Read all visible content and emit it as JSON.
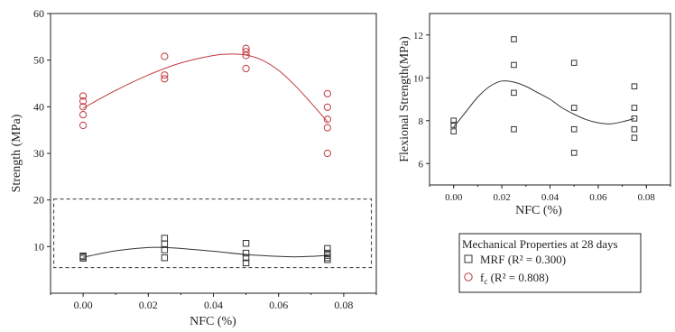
{
  "colors": {
    "mrf": "#333333",
    "fc": "#c0393e",
    "dashed_box": "#333333",
    "axis": "#222222"
  },
  "legend": {
    "title": "Mechanical Properties at 28 days",
    "mrf_label": "MRF (R² = 0.300)",
    "fc_label_main": "f",
    "fc_label_sub": "c",
    "fc_label_rest": " (R² = 0.808)",
    "mrf_marker": "square",
    "fc_marker": "circle"
  },
  "chart_data": [
    {
      "type": "scatter",
      "ylabel": "Strength (MPa)",
      "xlabel": "NFC (%)",
      "xlim": [
        -0.01,
        0.09
      ],
      "ylim": [
        0,
        60
      ],
      "xticks": [
        0.0,
        0.02,
        0.04,
        0.06,
        0.08
      ],
      "xtick_labels": [
        "0.00",
        "0.02",
        "0.04",
        "0.06",
        "0.08"
      ],
      "yticks": [
        10,
        20,
        30,
        40,
        50,
        60
      ],
      "ytick_labels": [
        "10",
        "20",
        "30",
        "40",
        "50",
        "60"
      ],
      "dashed_box": {
        "x": [
          -0.009,
          0.0885
        ],
        "y": [
          5.5,
          20.2
        ]
      },
      "series": [
        {
          "name": "f_c (R² = 0.808)",
          "marker": "circle",
          "points": [
            [
              0.0,
              36.0
            ],
            [
              0.0,
              38.3
            ],
            [
              0.0,
              40.0
            ],
            [
              0.0,
              41.2
            ],
            [
              0.0,
              42.3
            ],
            [
              0.025,
              46.0
            ],
            [
              0.025,
              46.8
            ],
            [
              0.025,
              50.8
            ],
            [
              0.05,
              48.2
            ],
            [
              0.05,
              51.0
            ],
            [
              0.05,
              51.8
            ],
            [
              0.05,
              52.5
            ],
            [
              0.075,
              30.0
            ],
            [
              0.075,
              35.5
            ],
            [
              0.075,
              37.3
            ],
            [
              0.075,
              39.9
            ],
            [
              0.075,
              42.8
            ]
          ],
          "fit": [
            [
              0.0,
              39.7
            ],
            [
              0.01,
              43.5
            ],
            [
              0.02,
              46.8
            ],
            [
              0.03,
              49.4
            ],
            [
              0.04,
              51.0
            ],
            [
              0.045,
              51.3
            ],
            [
              0.05,
              51.1
            ],
            [
              0.055,
              50.0
            ],
            [
              0.06,
              47.8
            ],
            [
              0.065,
              44.6
            ],
            [
              0.07,
              40.8
            ],
            [
              0.075,
              36.8
            ]
          ]
        },
        {
          "name": "MRF (R² = 0.300)",
          "marker": "square",
          "points": [
            [
              0.0,
              7.5
            ],
            [
              0.0,
              7.8
            ],
            [
              0.0,
              8.0
            ],
            [
              0.025,
              7.6
            ],
            [
              0.025,
              9.3
            ],
            [
              0.025,
              10.6
            ],
            [
              0.025,
              11.8
            ],
            [
              0.05,
              6.5
            ],
            [
              0.05,
              7.6
            ],
            [
              0.05,
              8.6
            ],
            [
              0.05,
              10.7
            ],
            [
              0.075,
              7.2
            ],
            [
              0.075,
              7.6
            ],
            [
              0.075,
              8.1
            ],
            [
              0.075,
              8.6
            ],
            [
              0.075,
              9.6
            ]
          ],
          "fit": [
            [
              0.0,
              7.7
            ],
            [
              0.01,
              9.1
            ],
            [
              0.02,
              9.8
            ],
            [
              0.025,
              9.8
            ],
            [
              0.03,
              9.6
            ],
            [
              0.04,
              9.0
            ],
            [
              0.05,
              8.3
            ],
            [
              0.06,
              7.9
            ],
            [
              0.065,
              7.8
            ],
            [
              0.07,
              7.9
            ],
            [
              0.075,
              8.1
            ]
          ]
        }
      ]
    },
    {
      "type": "scatter",
      "ylabel": "Flexional Strength(MPa)",
      "xlabel": "NFC (%)",
      "xlim": [
        -0.01,
        0.09
      ],
      "ylim": [
        5,
        13
      ],
      "xticks": [
        0.0,
        0.02,
        0.04,
        0.06,
        0.08
      ],
      "xtick_labels": [
        "0.00",
        "0.02",
        "0.04",
        "0.06",
        "0.08"
      ],
      "yticks": [
        6,
        8,
        10,
        12
      ],
      "ytick_labels": [
        "6",
        "8",
        "10",
        "12"
      ],
      "series": [
        {
          "name": "MRF (R² = 0.300)",
          "marker": "square",
          "points": [
            [
              0.0,
              7.5
            ],
            [
              0.0,
              7.8
            ],
            [
              0.0,
              8.0
            ],
            [
              0.025,
              7.6
            ],
            [
              0.025,
              9.3
            ],
            [
              0.025,
              10.6
            ],
            [
              0.025,
              11.8
            ],
            [
              0.05,
              6.5
            ],
            [
              0.05,
              7.6
            ],
            [
              0.05,
              8.6
            ],
            [
              0.05,
              10.7
            ],
            [
              0.075,
              7.2
            ],
            [
              0.075,
              7.6
            ],
            [
              0.075,
              8.1
            ],
            [
              0.075,
              8.6
            ],
            [
              0.075,
              9.6
            ]
          ],
          "fit": [
            [
              0.0,
              7.7
            ],
            [
              0.005,
              8.4
            ],
            [
              0.01,
              9.1
            ],
            [
              0.015,
              9.6
            ],
            [
              0.02,
              9.85
            ],
            [
              0.025,
              9.8
            ],
            [
              0.03,
              9.6
            ],
            [
              0.035,
              9.3
            ],
            [
              0.04,
              9.0
            ],
            [
              0.045,
              8.6
            ],
            [
              0.05,
              8.3
            ],
            [
              0.055,
              8.05
            ],
            [
              0.06,
              7.9
            ],
            [
              0.065,
              7.85
            ],
            [
              0.07,
              7.95
            ],
            [
              0.075,
              8.1
            ]
          ]
        }
      ]
    }
  ]
}
